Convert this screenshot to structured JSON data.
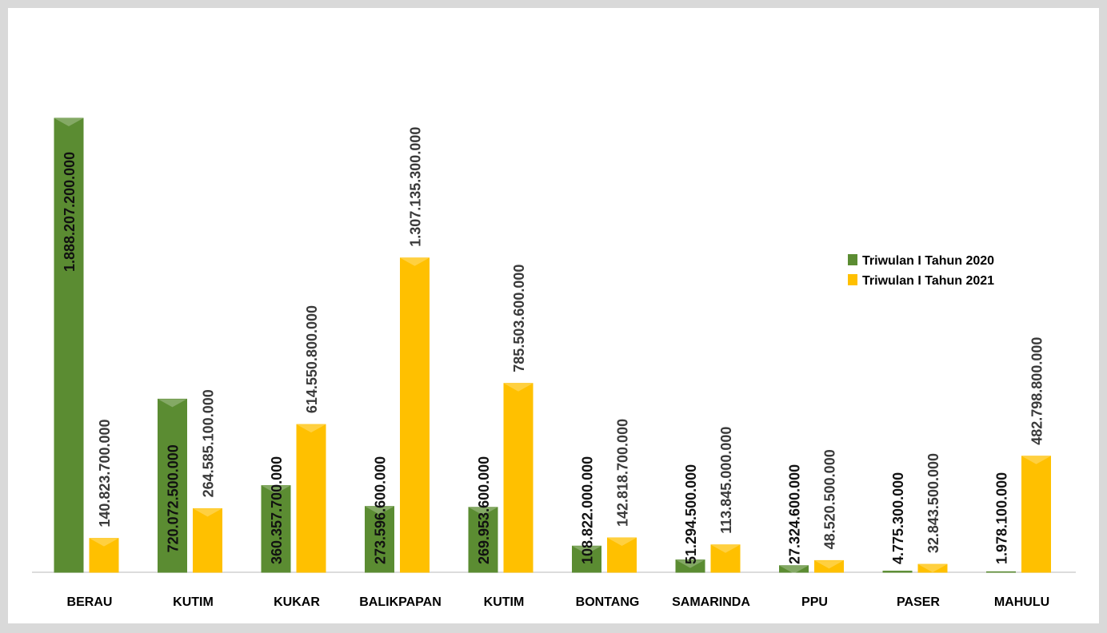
{
  "chart_data": {
    "type": "bar",
    "categories": [
      "BERAU",
      "KUTIM",
      "KUKAR",
      "BALIKPAPAN",
      "KUTIM",
      "BONTANG",
      "SAMARINDA",
      "PPU",
      "PASER",
      "MAHULU"
    ],
    "series": [
      {
        "name": "Triwulan I Tahun 2020",
        "color": "#5b8c32",
        "values": [
          1888207200000,
          720072500000,
          360357700000,
          273596600000,
          269953600000,
          108822000000,
          51294500000,
          27324600000,
          4775300000,
          1978100000
        ],
        "value_labels": [
          "1.888.207.200.000",
          "720.072.500.000",
          "360.357.700.000",
          "273.596.600.000",
          "269.953.600.000",
          "108.822.000.000",
          "51.294.500.000",
          "27.324.600.000",
          "4.775.300.000",
          "1.978.100.000"
        ]
      },
      {
        "name": "Triwulan I Tahun 2021",
        "color": "#ffc000",
        "values": [
          140823700000,
          264585100000,
          614550800000,
          1307135300000,
          785503600000,
          142818700000,
          113845000000,
          48520500000,
          32843500000,
          482798800000
        ],
        "value_labels": [
          "140.823.700.000",
          "264.585.100.000",
          "614.550.800.000",
          "1.307.135.300.000",
          "785.503.600.000",
          "142.818.700.000",
          "113.845.000.000",
          "48.520.500.000",
          "32.843.500.000",
          "482.798.800.000"
        ]
      }
    ],
    "legend": "right"
  }
}
